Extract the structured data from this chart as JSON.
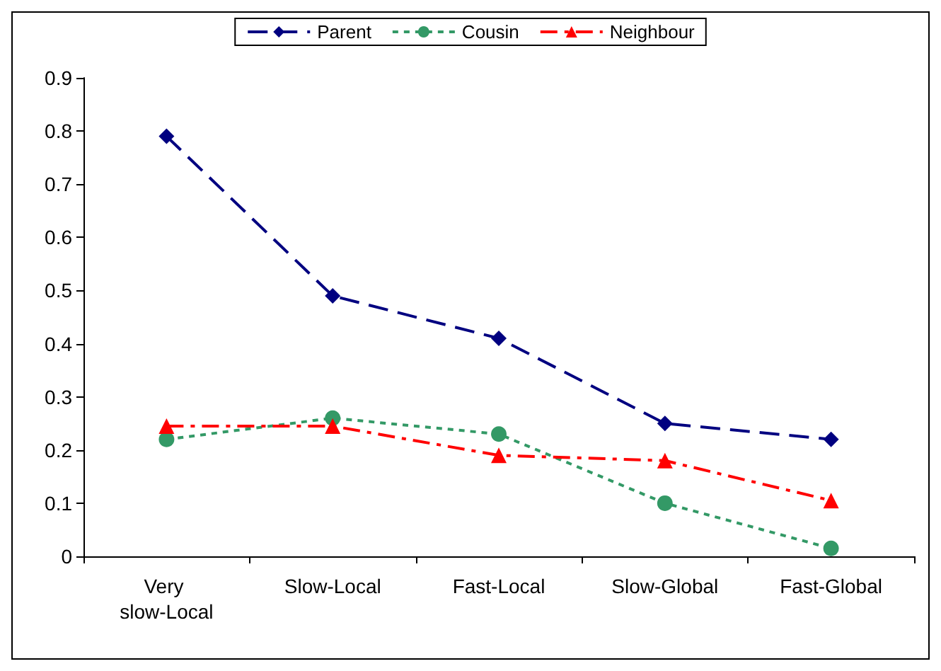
{
  "chart_data": {
    "type": "line",
    "categories": [
      "Very slow-Local",
      "Slow-Local",
      "Fast-Local",
      "Slow-Global",
      "Fast-Global"
    ],
    "series": [
      {
        "name": "Parent",
        "color": "#000080",
        "values": [
          0.79,
          0.49,
          0.41,
          0.25,
          0.22
        ],
        "marker": "diamond",
        "line_style": "dashed"
      },
      {
        "name": "Cousin",
        "color": "#339966",
        "values": [
          0.22,
          0.26,
          0.23,
          0.1,
          0.015
        ],
        "marker": "circle",
        "line_style": "dotted"
      },
      {
        "name": "Neighbour",
        "color": "#ff0000",
        "values": [
          0.245,
          0.245,
          0.19,
          0.18,
          0.105
        ],
        "marker": "triangle",
        "line_style": "dashdot"
      }
    ],
    "ylim": [
      0,
      0.9
    ],
    "yticks": [
      0,
      0.1,
      0.2,
      0.3,
      0.4,
      0.5,
      0.6,
      0.7,
      0.8,
      0.9
    ],
    "grid": false,
    "legend": "top"
  }
}
